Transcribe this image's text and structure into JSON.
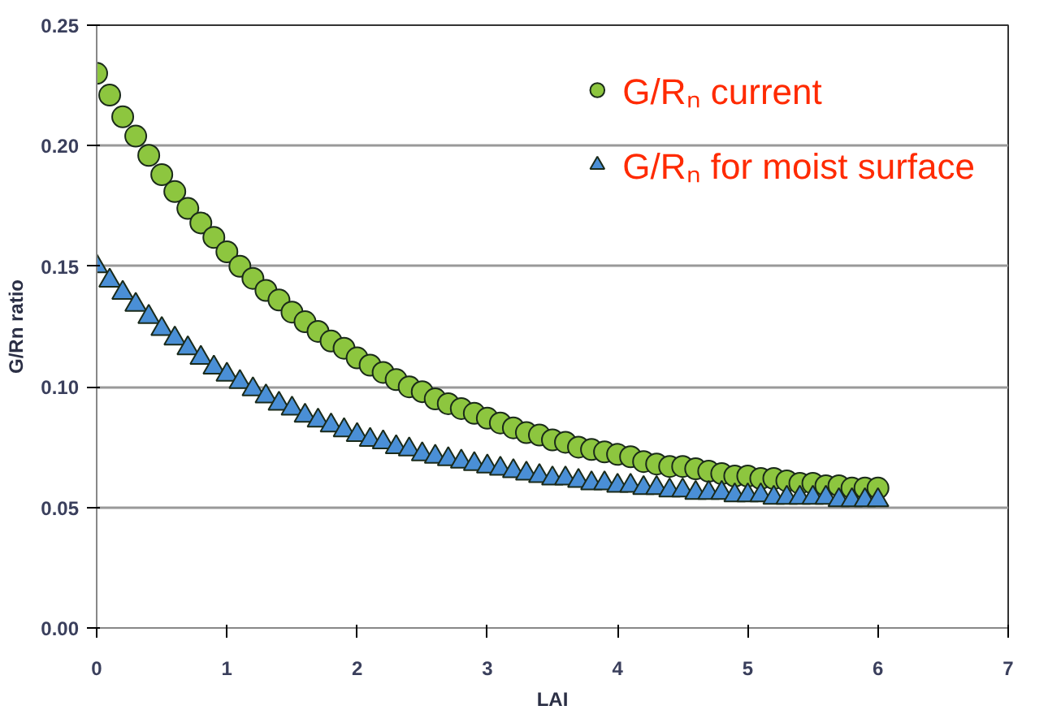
{
  "chart_data": {
    "type": "scatter",
    "xlabel": "LAI",
    "ylabel": "G/Rn ratio",
    "x": [
      0,
      0.1,
      0.2,
      0.3,
      0.4,
      0.5,
      0.6,
      0.7,
      0.8,
      0.9,
      1,
      1.1,
      1.2,
      1.3,
      1.4,
      1.5,
      1.6,
      1.7,
      1.8,
      1.9,
      2,
      2.1,
      2.2,
      2.3,
      2.4,
      2.5,
      2.6,
      2.7,
      2.8,
      2.9,
      3,
      3.1,
      3.2,
      3.3,
      3.4,
      3.5,
      3.6,
      3.7,
      3.8,
      3.9,
      4,
      4.1,
      4.2,
      4.3,
      4.4,
      4.5,
      4.6,
      4.7,
      4.8,
      4.9,
      5,
      5.1,
      5.2,
      5.3,
      5.4,
      5.5,
      5.6,
      5.7,
      5.8,
      5.9,
      6
    ],
    "series": [
      {
        "name": "G/Rₙ current",
        "color": "#8dc63f",
        "marker": "circle",
        "values": [
          0.23,
          0.221,
          0.212,
          0.204,
          0.196,
          0.188,
          0.181,
          0.174,
          0.168,
          0.162,
          0.156,
          0.15,
          0.145,
          0.14,
          0.136,
          0.131,
          0.127,
          0.123,
          0.119,
          0.116,
          0.112,
          0.109,
          0.106,
          0.103,
          0.1,
          0.098,
          0.095,
          0.093,
          0.091,
          0.089,
          0.087,
          0.085,
          0.083,
          0.081,
          0.08,
          0.078,
          0.077,
          0.075,
          0.074,
          0.073,
          0.072,
          0.071,
          0.069,
          0.068,
          0.067,
          0.067,
          0.066,
          0.065,
          0.064,
          0.063,
          0.063,
          0.062,
          0.062,
          0.061,
          0.06,
          0.06,
          0.059,
          0.059,
          0.058,
          0.058,
          0.058
        ]
      },
      {
        "name": "G/Rₙ for moist surface",
        "color": "#4a8fd6",
        "marker": "triangle",
        "values": [
          0.15,
          0.144,
          0.139,
          0.134,
          0.129,
          0.124,
          0.12,
          0.116,
          0.112,
          0.108,
          0.105,
          0.102,
          0.099,
          0.096,
          0.093,
          0.091,
          0.088,
          0.086,
          0.084,
          0.082,
          0.08,
          0.078,
          0.077,
          0.075,
          0.074,
          0.072,
          0.071,
          0.07,
          0.069,
          0.068,
          0.067,
          0.066,
          0.065,
          0.064,
          0.063,
          0.062,
          0.062,
          0.061,
          0.06,
          0.06,
          0.059,
          0.059,
          0.058,
          0.058,
          0.057,
          0.057,
          0.056,
          0.056,
          0.056,
          0.055,
          0.055,
          0.055,
          0.054,
          0.054,
          0.054,
          0.054,
          0.054,
          0.053,
          0.053,
          0.053,
          0.053
        ]
      }
    ],
    "xlim": [
      0,
      7
    ],
    "ylim": [
      0,
      0.25
    ],
    "xticks": [
      0,
      1,
      2,
      3,
      4,
      5,
      6,
      7
    ],
    "yticks": [
      {
        "value": 0,
        "label": "0.00"
      },
      {
        "value": 0.05,
        "label": "0.05"
      },
      {
        "value": 0.1,
        "label": "0.10"
      },
      {
        "value": 0.15,
        "label": "0.15"
      },
      {
        "value": 0.2,
        "label": "0.20"
      },
      {
        "value": 0.25,
        "label": "0.25"
      }
    ],
    "grid": "y",
    "legend": "top right"
  }
}
